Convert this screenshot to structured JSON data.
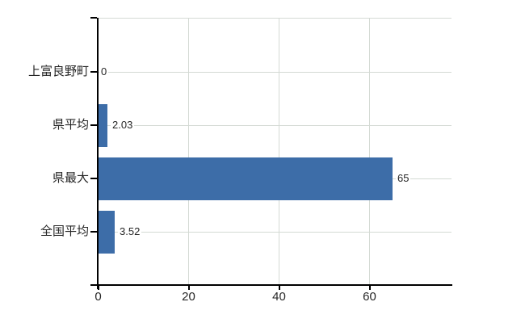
{
  "chart_data": {
    "type": "bar",
    "orientation": "horizontal",
    "title": "",
    "categories": [
      "上富良野町",
      "県平均",
      "県最大",
      "全国平均"
    ],
    "values": [
      0,
      2.03,
      65,
      3.52
    ],
    "value_labels": [
      "0",
      "2.03",
      "65",
      "3.52"
    ],
    "x_ticks": [
      "0",
      "20",
      "40",
      "60"
    ],
    "x_tick_values": [
      0,
      20,
      40,
      60
    ],
    "xlim": [
      0,
      78.5
    ],
    "grid": "on",
    "legend": "none"
  },
  "colors": {
    "background": "#ffffff",
    "bar": "#3d6da8",
    "grid": "#d4dad4",
    "axis": "#000000",
    "text": "#262626"
  }
}
